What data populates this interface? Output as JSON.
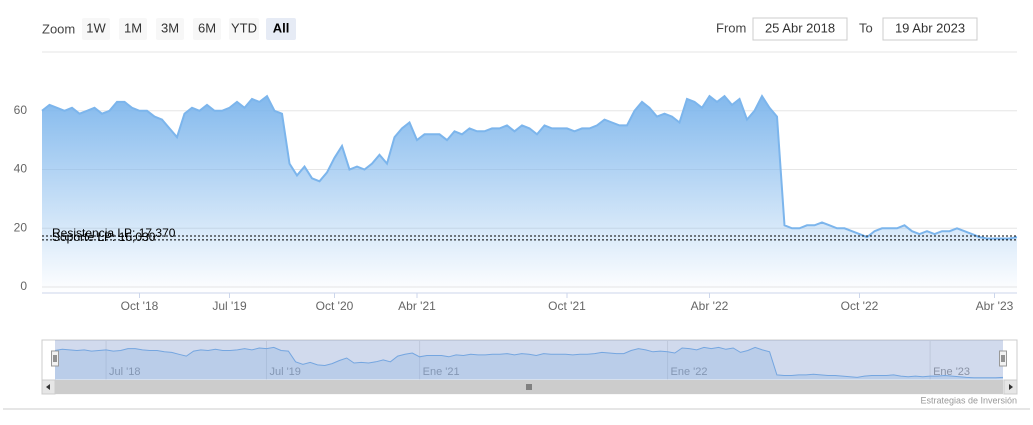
{
  "range_selector": {
    "label": "Zoom",
    "buttons": [
      "1W",
      "1M",
      "3M",
      "6M",
      "YTD",
      "All"
    ],
    "selected": 5,
    "from_label": "From",
    "from": "25 Abr 2018",
    "to_label": "To",
    "to": "19 Abr 2023"
  },
  "chart_data": {
    "type": "area",
    "color": "#7cb5ec",
    "categories": [
      null,
      null,
      null,
      null,
      null,
      null,
      null,
      null,
      null,
      null,
      null,
      null,
      null,
      "Oct '18",
      null,
      null,
      null,
      null,
      null,
      null,
      null,
      null,
      null,
      null,
      null,
      "Jul '19",
      null,
      null,
      null,
      null,
      null,
      null,
      null,
      null,
      null,
      null,
      null,
      null,
      null,
      "Oct '20",
      null,
      null,
      null,
      null,
      null,
      null,
      null,
      null,
      null,
      null,
      "Abr '21",
      null,
      null,
      null,
      null,
      null,
      null,
      null,
      null,
      null,
      null,
      null,
      null,
      null,
      null,
      null,
      null,
      null,
      null,
      null,
      "Oct '21",
      null,
      null,
      null,
      null,
      null,
      null,
      null,
      null,
      null,
      null,
      null,
      null,
      null,
      null,
      null,
      null,
      null,
      null,
      "Abr '22",
      null,
      null,
      null,
      null,
      null,
      null,
      null,
      null,
      null,
      null,
      null,
      null,
      null,
      null,
      null,
      null,
      null,
      null,
      null,
      "Oct '22",
      null,
      null,
      null,
      null,
      null,
      null,
      null,
      null,
      null,
      null,
      null,
      null,
      null,
      null,
      null,
      null,
      null,
      "Abr '23",
      null,
      null,
      null
    ],
    "values": [
      60,
      62,
      61,
      60,
      61,
      59,
      60,
      61,
      59,
      60,
      63,
      63,
      61,
      60,
      60,
      58,
      57,
      54,
      51,
      59,
      61,
      60,
      62,
      60,
      60,
      61,
      63,
      61,
      64,
      63,
      65,
      60,
      59,
      42,
      38,
      41,
      37,
      36,
      39,
      44,
      48,
      40,
      41,
      40,
      42,
      45,
      42,
      51,
      54,
      56,
      50,
      52,
      52,
      52,
      50,
      53,
      52,
      54,
      53,
      53,
      54,
      54,
      55,
      53,
      55,
      54,
      52,
      55,
      54,
      54,
      54,
      53,
      54,
      54,
      55,
      57,
      56,
      55,
      55,
      60,
      63,
      61,
      58,
      59,
      58,
      56,
      64,
      63,
      61,
      65,
      63,
      65,
      62,
      64,
      57,
      60,
      65,
      61,
      58,
      21,
      20,
      20,
      21,
      21,
      22,
      21,
      20,
      20,
      19,
      18,
      17,
      19,
      20,
      20,
      20,
      21,
      19,
      18,
      19,
      18,
      19,
      19,
      20,
      19,
      18,
      17,
      16.5,
      16.5,
      16.5,
      16.5,
      17
    ],
    "ylim": [
      0,
      80
    ],
    "yticks": [
      0,
      20,
      40,
      60
    ],
    "grid": true,
    "plot_lines": [
      {
        "label": "Resistencia LP: 17,370",
        "value": 17.37
      },
      {
        "label": "Soporte LP: 16,030",
        "value": 16.03
      }
    ],
    "navigator": {
      "categories": [
        null,
        null,
        null,
        null,
        null,
        null,
        null,
        "Jul '18",
        null,
        null,
        null,
        null,
        null,
        null,
        null,
        null,
        null,
        null,
        null,
        null,
        null,
        null,
        null,
        null,
        null,
        null,
        null,
        null,
        null,
        "Jul '19",
        null,
        null,
        null,
        null,
        null,
        null,
        null,
        null,
        null,
        null,
        null,
        null,
        null,
        null,
        null,
        null,
        null,
        null,
        null,
        null,
        "Ene '21",
        null,
        null,
        null,
        null,
        null,
        null,
        null,
        null,
        null,
        null,
        null,
        null,
        null,
        null,
        null,
        null,
        null,
        null,
        null,
        null,
        null,
        null,
        null,
        null,
        null,
        null,
        null,
        null,
        null,
        null,
        null,
        null,
        null,
        "Ene '22",
        null,
        null,
        null,
        null,
        null,
        null,
        null,
        null,
        null,
        null,
        null,
        null,
        null,
        null,
        null,
        null,
        null,
        null,
        null,
        null,
        null,
        null,
        null,
        null,
        null,
        null,
        null,
        null,
        null,
        null,
        null,
        null,
        null,
        null,
        null,
        "Ene '23",
        null,
        null,
        null,
        null,
        null,
        null,
        null,
        null,
        null,
        null
      ]
    }
  },
  "credits": "Estrategias de Inversión"
}
